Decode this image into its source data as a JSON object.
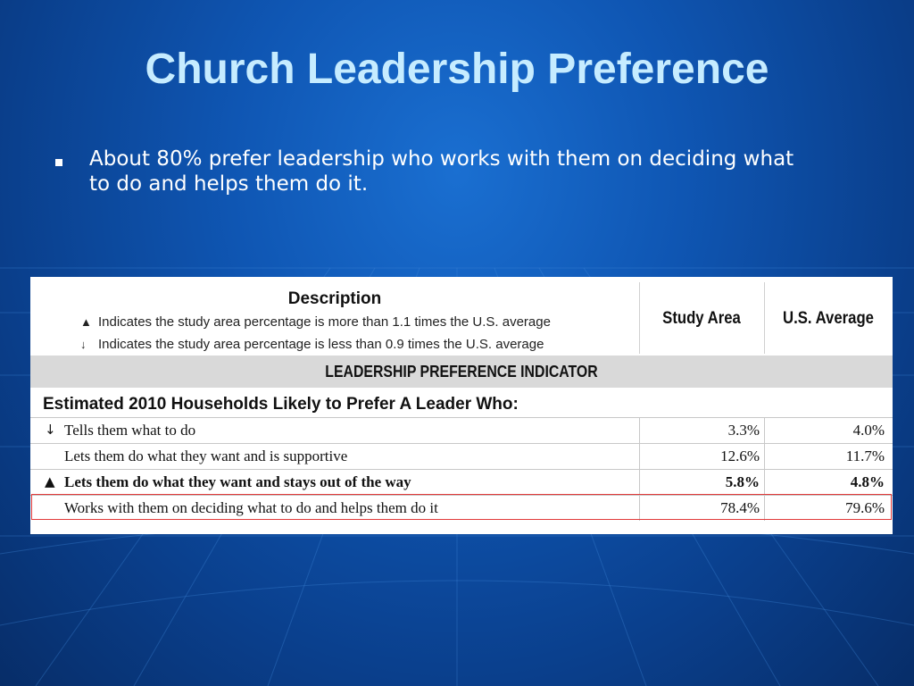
{
  "slide": {
    "title": "Church Leadership Preference",
    "bullet": "About 80% prefer leadership who works with them on deciding what to do and helps them do it."
  },
  "table": {
    "header": {
      "description_title": "Description",
      "legend": [
        {
          "symbol": "▲",
          "text": "Indicates the study area percentage is more than 1.1 times the U.S. average"
        },
        {
          "symbol": "↓",
          "text": "Indicates the study area percentage is less than 0.9 times the U.S. average"
        }
      ],
      "col_study_area": "Study Area",
      "col_us_average": "U.S. Average"
    },
    "section_title": "LEADERSHIP PREFERENCE INDICATOR",
    "subheading": "Estimated 2010 Households Likely to Prefer A Leader Who:",
    "rows": [
      {
        "symbol": "↓",
        "label": "Tells them what to do",
        "study_area": "3.3%",
        "us_average": "4.0%"
      },
      {
        "symbol": "",
        "label": "Lets them do what they want and is supportive",
        "study_area": "12.6%",
        "us_average": "11.7%"
      },
      {
        "symbol": "▲",
        "label": "Lets them do what they want and stays out of the way",
        "study_area": "5.8%",
        "us_average": "4.8%"
      },
      {
        "symbol": "",
        "label": "Works with them on deciding what to do and helps them do it",
        "study_area": "78.4%",
        "us_average": "79.6%"
      }
    ]
  },
  "colors": {
    "title": "#c6ecff",
    "highlight_border": "#e23a3a",
    "band": "#d9d9d9"
  }
}
